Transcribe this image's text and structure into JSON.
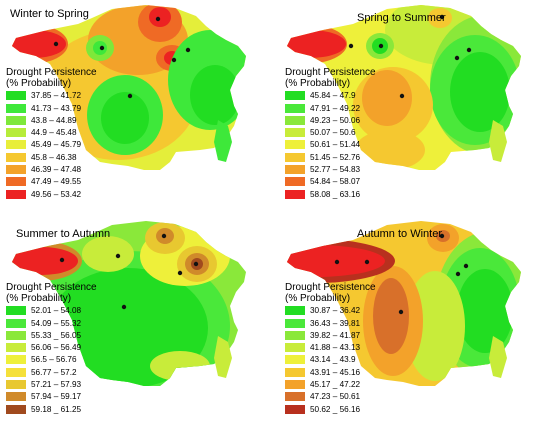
{
  "legend_title_line1": "Drought Persistence",
  "legend_title_line2": "(% Probability)",
  "panels": [
    {
      "title": "Winter to Spring",
      "legend": [
        {
          "label": "37.85 – 41.72",
          "color": "#22dd22"
        },
        {
          "label": "41.73 – 43.79",
          "color": "#3ee83a"
        },
        {
          "label": "43.8 – 44.89",
          "color": "#7ee83a"
        },
        {
          "label": "44.9 – 45.48",
          "color": "#b6ec3a"
        },
        {
          "label": "45.49 – 45.79",
          "color": "#e8ee3a"
        },
        {
          "label": "45.8 – 46.38",
          "color": "#f5c830"
        },
        {
          "label": "46.39 – 47.48",
          "color": "#f3a22a"
        },
        {
          "label": "47.49 – 49.55",
          "color": "#ef6a25"
        },
        {
          "label": "49.56 – 53.42",
          "color": "#ec2222"
        }
      ]
    },
    {
      "title": "Spring to Summer",
      "legend": [
        {
          "label": "45.84 – 47.9",
          "color": "#22dd22"
        },
        {
          "label": "47.91 – 49.22",
          "color": "#4ae83a"
        },
        {
          "label": "49.23 – 50.06",
          "color": "#8ae83a"
        },
        {
          "label": "50.07 – 50.6",
          "color": "#c8ec3a"
        },
        {
          "label": "50.61 – 51.44",
          "color": "#eef03a"
        },
        {
          "label": "51.45 – 52.76",
          "color": "#f5c830"
        },
        {
          "label": "52.77 – 54.83",
          "color": "#f3a22a"
        },
        {
          "label": "54.84 – 58.07",
          "color": "#ef6a25"
        },
        {
          "label": "58.08 _ 63.16",
          "color": "#ec2222"
        }
      ]
    },
    {
      "title": "Summer to Autumn",
      "legend": [
        {
          "label": "52.01 – 54.08",
          "color": "#22dd22"
        },
        {
          "label": "54.09 – 55.32",
          "color": "#4ae83a"
        },
        {
          "label": "55.33 _ 56.05",
          "color": "#8ae83a"
        },
        {
          "label": "56.06 – 56.49",
          "color": "#c8ec3a"
        },
        {
          "label": "56.5 – 56.76",
          "color": "#eef03a"
        },
        {
          "label": "56.77 – 57.2",
          "color": "#f5e03a"
        },
        {
          "label": "57.21 – 57.93",
          "color": "#e8c830"
        },
        {
          "label": "57.94 – 59.17",
          "color": "#d08a2a"
        },
        {
          "label": "59.18 _ 61.25",
          "color": "#a04a1e"
        }
      ]
    },
    {
      "title": "Autumn to Winter",
      "legend": [
        {
          "label": "30.87 – 36.42",
          "color": "#22dd22"
        },
        {
          "label": "36.43 – 39.81",
          "color": "#4ae83a"
        },
        {
          "label": "39.82 – 41.87",
          "color": "#8ae83a"
        },
        {
          "label": "41.88 – 43.13",
          "color": "#c8ec3a"
        },
        {
          "label": "43.14 _ 43.9",
          "color": "#eef03a"
        },
        {
          "label": "43.91 – 45.16",
          "color": "#f5c830"
        },
        {
          "label": "45.17 _ 47.22",
          "color": "#f3a22a"
        },
        {
          "label": "47.23 – 50.61",
          "color": "#d8702a"
        },
        {
          "label": "50.62 _ 56.16",
          "color": "#b8301e"
        }
      ]
    }
  ]
}
